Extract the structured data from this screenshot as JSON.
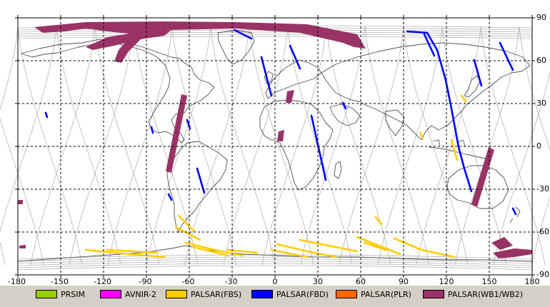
{
  "map": {
    "lon_ticks": [
      "-180",
      "-150",
      "-120",
      "-90",
      "-60",
      "-30",
      "0",
      "30",
      "60",
      "90",
      "120",
      "150",
      "180"
    ],
    "lat_ticks": [
      "90",
      "60",
      "30",
      "0",
      "-30",
      "-60",
      "-90"
    ],
    "lon_range": [
      -180,
      180
    ],
    "lat_range": [
      -90,
      90
    ],
    "grid": "dashed",
    "frame_color": "#000000",
    "track_color": "#b4b4b4",
    "coast_color": "#505050"
  },
  "legend": [
    {
      "label": "PRSIM",
      "color": "#99cc00"
    },
    {
      "label": "AVNIR-2",
      "color": "#ff00ff"
    },
    {
      "label": "PALSAR(FBS)",
      "color": "#ffcc00"
    },
    {
      "label": "PALSAR(FBD)",
      "color": "#0000ff"
    },
    {
      "label": "PALSAR(PLR)",
      "color": "#ff6600"
    },
    {
      "label": "PALSAR(WB1/WB2)",
      "color": "#993366"
    }
  ]
}
